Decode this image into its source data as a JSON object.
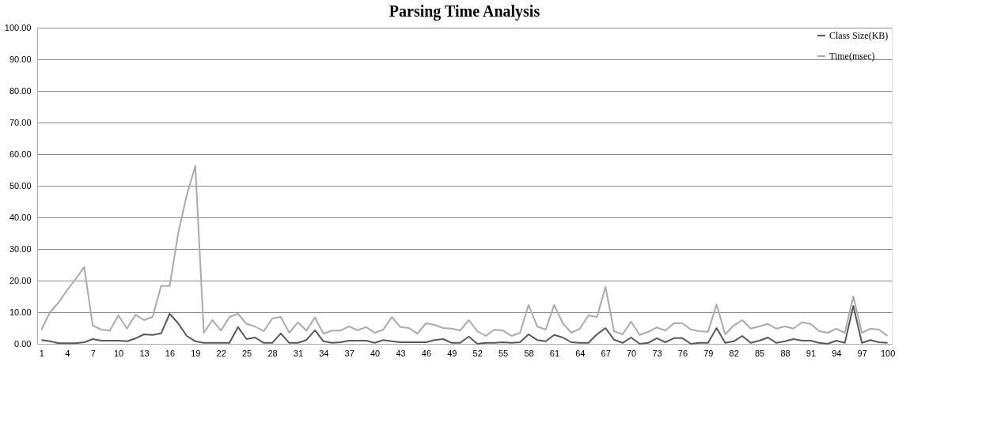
{
  "chart_data": {
    "type": "line",
    "title": "Parsing Time Analysis",
    "categories": [
      "1",
      null,
      null,
      "4",
      null,
      null,
      "7",
      null,
      null,
      "10",
      null,
      null,
      "13",
      null,
      null,
      "16",
      null,
      null,
      "19",
      null,
      null,
      "22",
      null,
      null,
      "25",
      null,
      null,
      "28",
      null,
      null,
      "31",
      null,
      null,
      "34",
      null,
      null,
      "37",
      null,
      null,
      "40",
      null,
      null,
      "43",
      null,
      null,
      "46",
      null,
      null,
      "49",
      null,
      null,
      "52",
      null,
      null,
      "55",
      null,
      null,
      "58",
      null,
      null,
      "61",
      null,
      null,
      "64",
      null,
      null,
      "67",
      null,
      null,
      "70",
      null,
      null,
      "73",
      null,
      null,
      "76",
      null,
      null,
      "79",
      null,
      null,
      "82",
      null,
      null,
      "85",
      null,
      null,
      "88",
      null,
      null,
      "91",
      null,
      null,
      "94",
      null,
      null,
      "97",
      null,
      null,
      "100"
    ],
    "series": [
      {
        "name": "Class Size(KB)",
        "color": "#595959",
        "values": [
          1.2,
          0.8,
          0.2,
          0.2,
          0.2,
          0.5,
          1.5,
          1,
          1,
          1,
          0.8,
          1.7,
          3,
          2.8,
          3.3,
          9.5,
          6.5,
          2.5,
          0.8,
          0.3,
          0.3,
          0.3,
          0.3,
          5.3,
          1.5,
          2,
          0.3,
          0.3,
          3.3,
          0.3,
          0.3,
          1.2,
          4.3,
          0.8,
          0.3,
          0.5,
          1,
          1,
          1,
          0.3,
          1.2,
          0.8,
          0.5,
          0.5,
          0.5,
          0.5,
          1.2,
          1.5,
          0.3,
          0.3,
          2.3,
          0,
          0.3,
          0.3,
          0.5,
          0.3,
          0.5,
          3,
          1.2,
          0.8,
          2.8,
          2,
          0.5,
          0.3,
          0.3,
          3,
          5,
          1.3,
          0.3,
          2,
          0,
          0.3,
          1.8,
          0.5,
          1.8,
          1.8,
          0,
          0.3,
          0.3,
          5,
          0.3,
          0.8,
          2.5,
          0.3,
          1,
          2,
          0.3,
          0.8,
          1.5,
          1,
          1,
          0.3,
          0,
          1,
          0.3,
          12,
          0.3,
          1.2,
          0.5,
          0.3
        ]
      },
      {
        "name": "Time(msec)",
        "color": "#ababab",
        "values": [
          4.5,
          10,
          13,
          17,
          20.5,
          24.3,
          5.8,
          4.5,
          4.2,
          9,
          4.8,
          9.2,
          7.5,
          8.5,
          18.3,
          18.3,
          35,
          47,
          56.3,
          3.5,
          7.5,
          4.2,
          8.5,
          9.5,
          6.3,
          5.5,
          4,
          8,
          8.5,
          3.5,
          6.8,
          4.2,
          8.3,
          3.2,
          4.2,
          4.2,
          5.5,
          4.3,
          5.3,
          3.5,
          4.5,
          8.5,
          5.3,
          5,
          3.2,
          6.5,
          6,
          5,
          4.8,
          4.2,
          7.5,
          4,
          2.5,
          4.5,
          4.2,
          2.5,
          3.5,
          12.3,
          5.5,
          4.5,
          12.3,
          6.5,
          3.5,
          4.8,
          9,
          8.5,
          18,
          4,
          3,
          7,
          2.8,
          3.8,
          5.2,
          4.2,
          6.5,
          6.5,
          4.5,
          4,
          3.8,
          12.5,
          3,
          5.8,
          7.5,
          4.8,
          5.5,
          6.3,
          4.8,
          5.5,
          4.8,
          6.8,
          6.3,
          4,
          3.5,
          4.8,
          3.5,
          15,
          3.5,
          4.8,
          4.5,
          2.5
        ]
      }
    ],
    "ylim": [
      0,
      100
    ],
    "yticks": [
      {
        "value": 0,
        "label": "0.00"
      },
      {
        "value": 10,
        "label": "10.00"
      },
      {
        "value": 20,
        "label": "20.00"
      },
      {
        "value": 30,
        "label": "30.00"
      },
      {
        "value": 40,
        "label": "40.00"
      },
      {
        "value": 50,
        "label": "50.00"
      },
      {
        "value": 60,
        "label": "60.00"
      },
      {
        "value": 70,
        "label": "70.00"
      },
      {
        "value": 80,
        "label": "80.00"
      },
      {
        "value": 90,
        "label": "90.00"
      },
      {
        "value": 100,
        "label": "100.00"
      }
    ],
    "grid": "y",
    "legend": "top right"
  }
}
